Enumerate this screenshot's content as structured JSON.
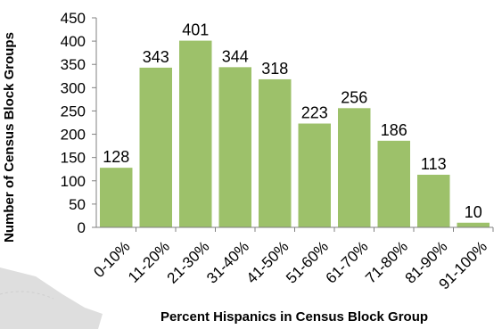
{
  "chart_data": {
    "type": "bar",
    "categories": [
      "0-10%",
      "11-20%",
      "21-30%",
      "31-40%",
      "41-50%",
      "51-60%",
      "61-70%",
      "71-80%",
      "81-90%",
      "91-100%"
    ],
    "values": [
      128,
      343,
      401,
      344,
      318,
      223,
      256,
      186,
      113,
      10
    ],
    "xlabel": "Percent Hispanics in Census Block Group",
    "ylabel": "Number of Census Block Groups",
    "ylim": [
      0,
      450
    ],
    "yticks": [
      "0",
      "50",
      "100",
      "150",
      "200",
      "250",
      "300",
      "350",
      "400",
      "450"
    ],
    "grid": false,
    "legend": "none",
    "bar_color": "#9dc16a",
    "background_map_color": "#dedede"
  }
}
